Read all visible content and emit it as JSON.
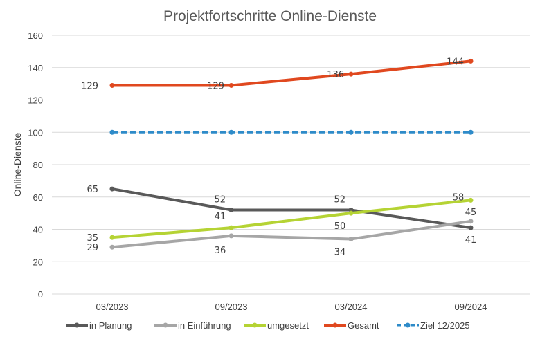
{
  "chart_data": {
    "type": "line",
    "title": "Projektfortschritte Online-Dienste",
    "xlabel": "",
    "ylabel": "Online-Dienste",
    "ylim": [
      0,
      160
    ],
    "yticks": [
      0,
      20,
      40,
      60,
      80,
      100,
      120,
      140,
      160
    ],
    "grid": true,
    "legend": "bottom",
    "categories": [
      "03/2023",
      "09/2023",
      "03/2024",
      "09/2024"
    ],
    "series": [
      {
        "name": "in Planung",
        "values": [
          65,
          52,
          52,
          41
        ],
        "color": "#595959",
        "dashed": false,
        "labels": true
      },
      {
        "name": "in Einführung",
        "values": [
          29,
          36,
          34,
          45
        ],
        "color": "#a6a6a6",
        "dashed": false,
        "labels": true
      },
      {
        "name": "umgesetzt",
        "values": [
          35,
          41,
          50,
          58
        ],
        "color": "#b5d334",
        "dashed": false,
        "labels": true
      },
      {
        "name": "Gesamt",
        "values": [
          129,
          129,
          136,
          144
        ],
        "color": "#e0481f",
        "dashed": false,
        "labels": true
      },
      {
        "name": "Ziel 12/2025",
        "values": [
          100,
          100,
          100,
          100
        ],
        "color": "#2e8bc9",
        "dashed": true,
        "labels": false
      }
    ]
  }
}
